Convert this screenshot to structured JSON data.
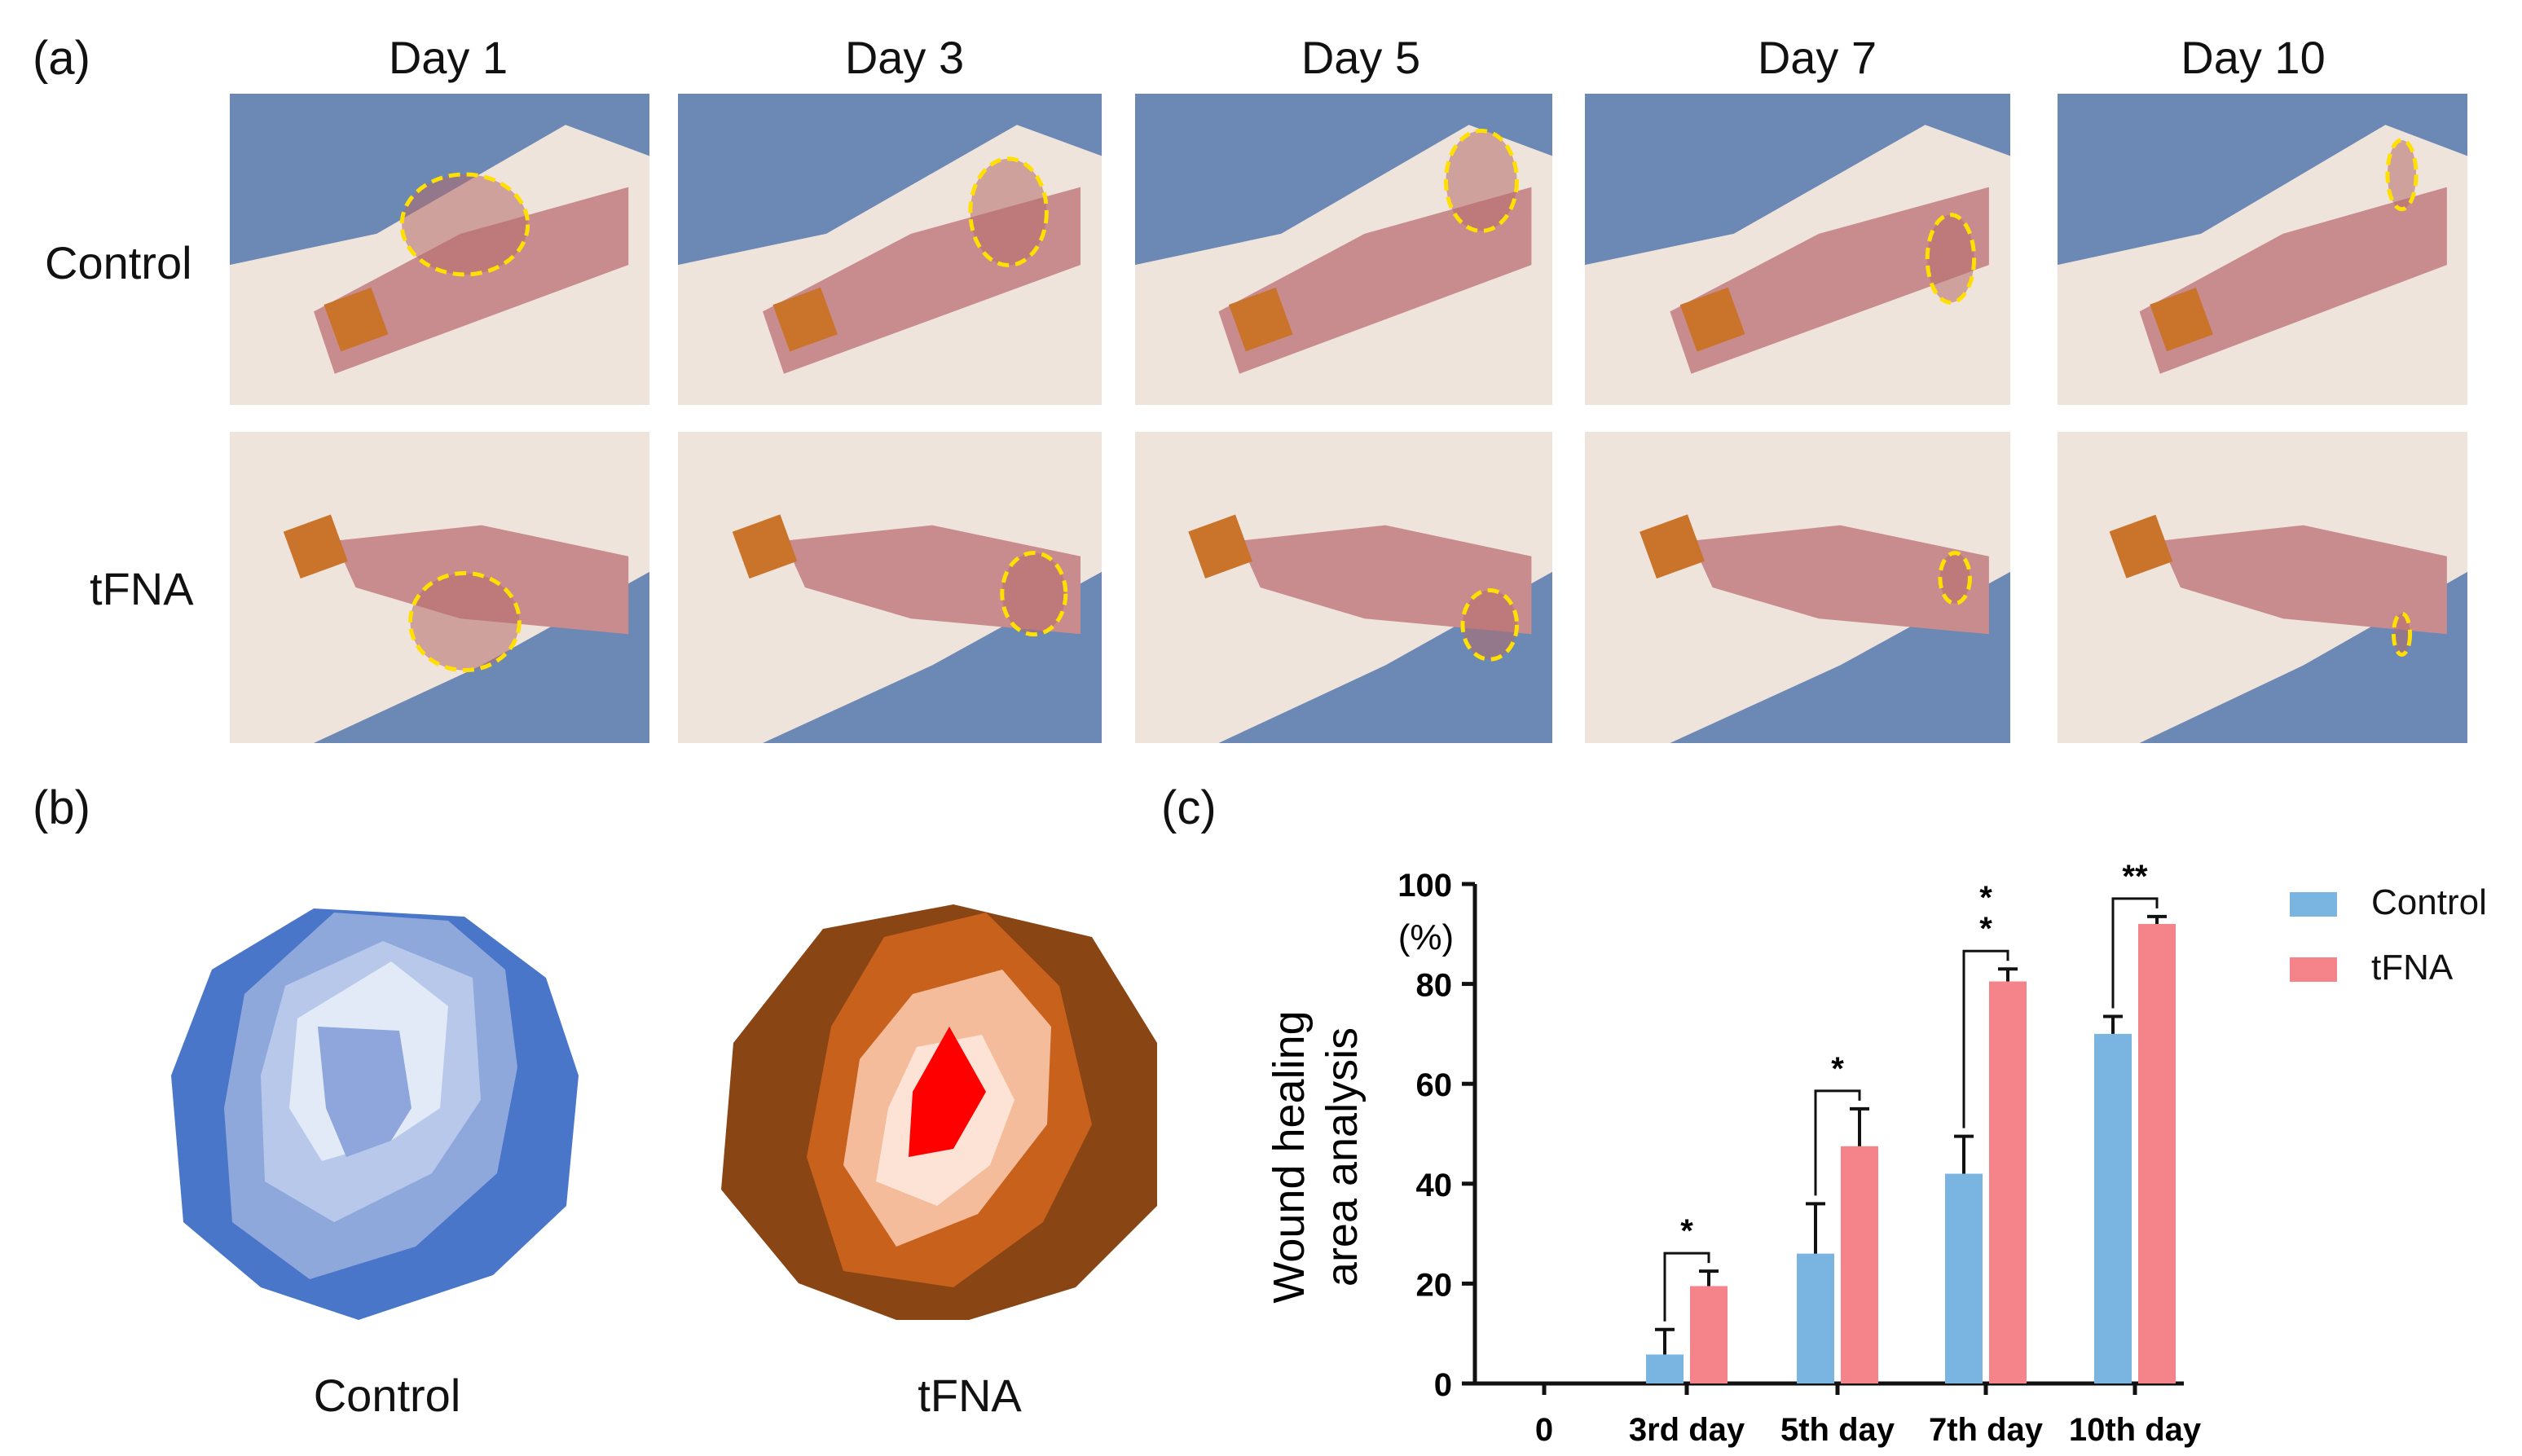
{
  "panel_labels": {
    "a": "(a)",
    "b": "(b)",
    "c": "(c)"
  },
  "panel_a": {
    "days": [
      "Day 1",
      "Day 3",
      "Day 5",
      "Day 7",
      "Day 10"
    ],
    "rows": [
      "Control",
      "tFNA"
    ]
  },
  "panel_b": {
    "labels": [
      "Control",
      "tFNA"
    ],
    "colors": {
      "control": [
        "#4a76c9",
        "#8fa8dc",
        "#b8c8ea",
        "#e3eaf7",
        "#8ea6db"
      ],
      "tfna": [
        "#8a4515",
        "#c8611c",
        "#f4bc9a",
        "#fce3d6",
        "#ff0000"
      ]
    }
  },
  "chart_data": {
    "type": "bar",
    "categories": [
      "0",
      "3rd day",
      "5th day",
      "7th day",
      "10th day"
    ],
    "series": [
      {
        "name": "Control",
        "color": "#7ab4e0",
        "values": [
          0,
          5.8,
          26,
          42,
          70
        ],
        "errors": [
          0,
          5,
          10,
          7.5,
          3.5
        ]
      },
      {
        "name": "tFNA",
        "color": "#f5838a",
        "values": [
          0,
          19.5,
          47.5,
          80.5,
          92
        ],
        "errors": [
          0,
          3,
          7.5,
          2.5,
          1.5
        ]
      }
    ],
    "ylabel": [
      "Wound healing",
      "area analysis"
    ],
    "yunit": "(%)",
    "ylim": [
      0,
      100
    ],
    "yticks": [
      "0",
      "20",
      "40",
      "60",
      "80",
      "100"
    ],
    "significance": [
      "",
      "*",
      "*",
      "* *",
      "**"
    ],
    "legend_position": "top-right"
  }
}
